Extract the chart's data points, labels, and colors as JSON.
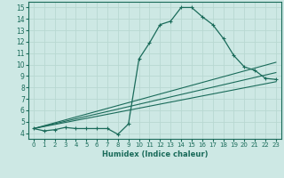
{
  "xlabel": "Humidex (Indice chaleur)",
  "background_color": "#cde8e4",
  "grid_color": "#b8d8d2",
  "line_color": "#1a6b5a",
  "xlim": [
    -0.5,
    23.5
  ],
  "ylim": [
    3.5,
    15.5
  ],
  "xticks": [
    0,
    1,
    2,
    3,
    4,
    5,
    6,
    7,
    8,
    9,
    10,
    11,
    12,
    13,
    14,
    15,
    16,
    17,
    18,
    19,
    20,
    21,
    22,
    23
  ],
  "yticks": [
    4,
    5,
    6,
    7,
    8,
    9,
    10,
    11,
    12,
    13,
    14,
    15
  ],
  "curve1_x": [
    0,
    1,
    2,
    3,
    4,
    5,
    6,
    7,
    8,
    9,
    10,
    11,
    12,
    13,
    14,
    15,
    16,
    17,
    18,
    19,
    20,
    21,
    22,
    23
  ],
  "curve1_y": [
    4.4,
    4.2,
    4.3,
    4.5,
    4.4,
    4.4,
    4.4,
    4.4,
    3.9,
    4.8,
    10.5,
    11.9,
    13.5,
    13.8,
    15.0,
    15.0,
    14.2,
    13.5,
    12.3,
    10.8,
    9.8,
    9.5,
    8.8,
    8.7
  ],
  "line2_x": [
    0,
    23
  ],
  "line2_y": [
    4.4,
    8.5
  ],
  "line3_x": [
    0,
    23
  ],
  "line3_y": [
    4.4,
    9.3
  ],
  "line4_x": [
    0,
    23
  ],
  "line4_y": [
    4.4,
    10.2
  ]
}
